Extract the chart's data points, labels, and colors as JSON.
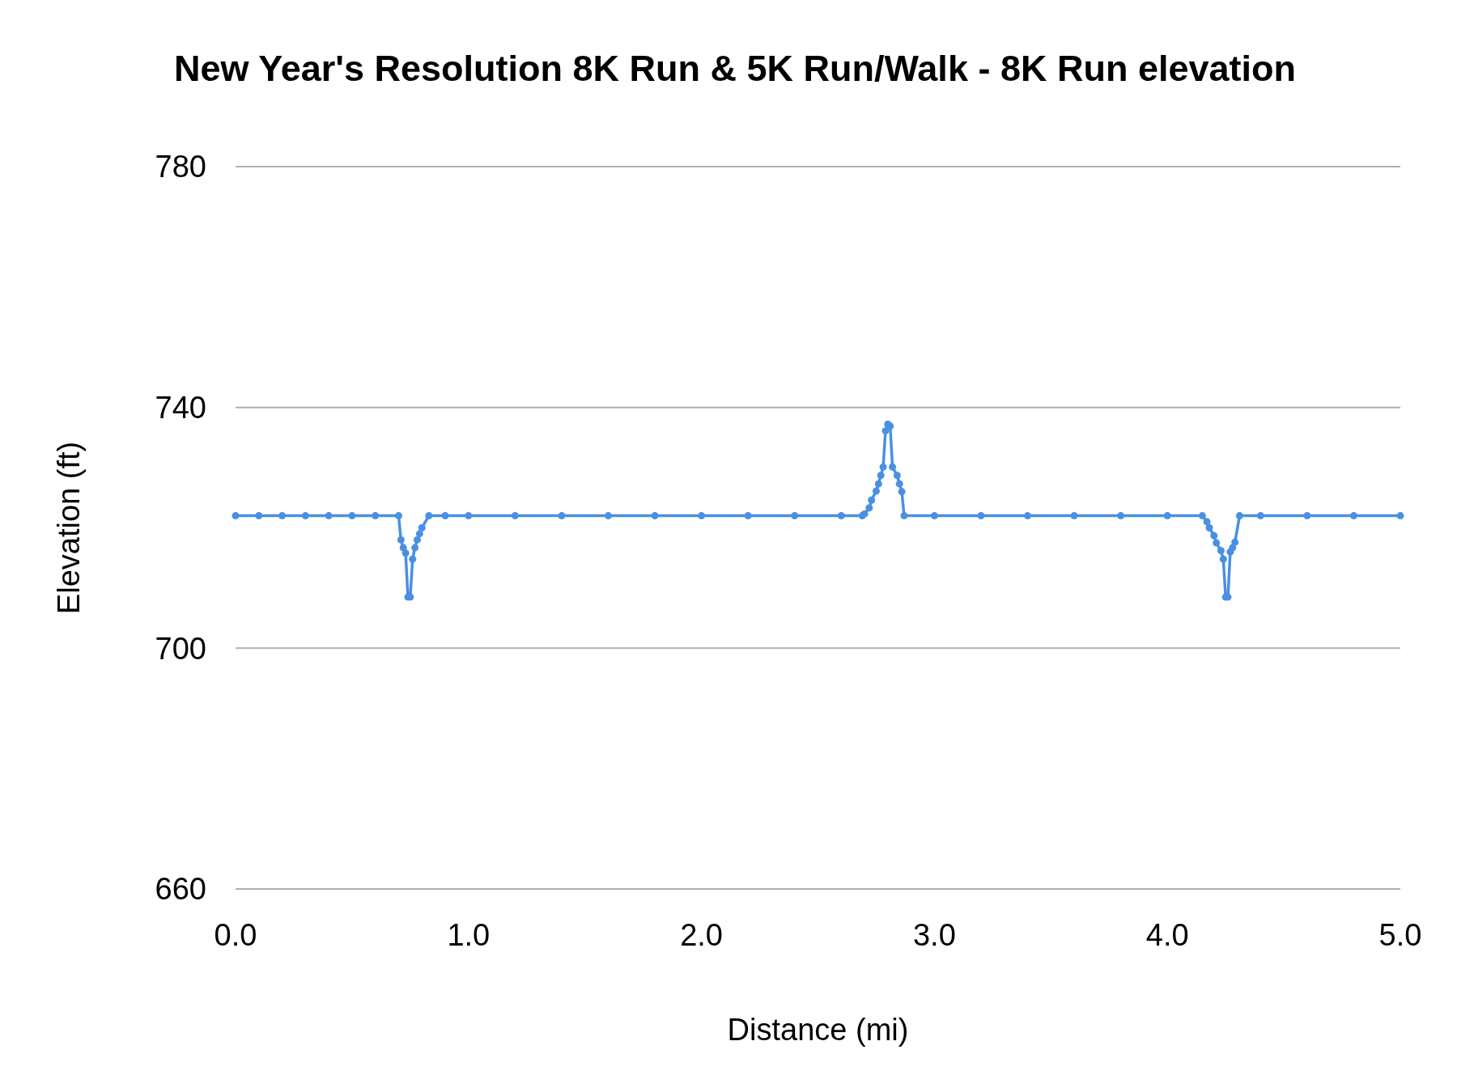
{
  "chart_data": {
    "type": "line",
    "title": "New Year's Resolution 8K Run & 5K Run/Walk - 8K Run elevation",
    "xlabel": "Distance (mi)",
    "ylabel": "Elevation (ft)",
    "x": [
      0,
      0.1,
      0.2,
      0.3,
      0.4,
      0.5,
      0.6,
      0.7,
      0.71,
      0.72,
      0.73,
      0.74,
      0.75,
      0.76,
      0.77,
      0.78,
      0.79,
      0.8,
      0.83,
      0.9,
      1.0,
      1.2,
      1.4,
      1.6,
      1.8,
      2.0,
      2.2,
      2.4,
      2.6,
      2.69,
      2.7,
      2.72,
      2.73,
      2.75,
      2.76,
      2.77,
      2.78,
      2.79,
      2.8,
      2.81,
      2.82,
      2.84,
      2.85,
      2.86,
      2.87,
      3.0,
      3.2,
      3.4,
      3.6,
      3.8,
      4.0,
      4.15,
      4.17,
      4.18,
      4.2,
      4.21,
      4.23,
      4.24,
      4.25,
      4.26,
      4.27,
      4.28,
      4.29,
      4.31,
      4.4,
      4.6,
      4.8,
      5.0
    ],
    "series": [
      {
        "color": "#4a90e2",
        "values": [
          722,
          722,
          722,
          722,
          722,
          722,
          722,
          722,
          718,
          716.7,
          715.8,
          708.5,
          708.5,
          714.8,
          716.7,
          718,
          719,
          720,
          722,
          722,
          722,
          722,
          722,
          722,
          722,
          722,
          722,
          722,
          722,
          722,
          722.3,
          723.3,
          724.6,
          726.1,
          727.3,
          728.7,
          730.1,
          736.1,
          737.2,
          736.9,
          730.1,
          728.7,
          727.3,
          726,
          722,
          722,
          722,
          722,
          722,
          722,
          722,
          722,
          721,
          720,
          718.7,
          717.5,
          716.2,
          714.8,
          708.5,
          708.5,
          716,
          716.7,
          717.6,
          722,
          722,
          722,
          722,
          722
        ]
      }
    ],
    "xlim": [
      0,
      5
    ],
    "xticks": [
      {
        "value": 0,
        "label": "0.0"
      },
      {
        "value": 1,
        "label": "1.0"
      },
      {
        "value": 2,
        "label": "2.0"
      },
      {
        "value": 3,
        "label": "3.0"
      },
      {
        "value": 4,
        "label": "4.0"
      },
      {
        "value": 5,
        "label": "5.0"
      }
    ],
    "ylim": [
      660,
      780
    ],
    "yticks": [
      660,
      700,
      740,
      780
    ],
    "grid": "y",
    "marker": "circle",
    "line_style": "solid"
  }
}
